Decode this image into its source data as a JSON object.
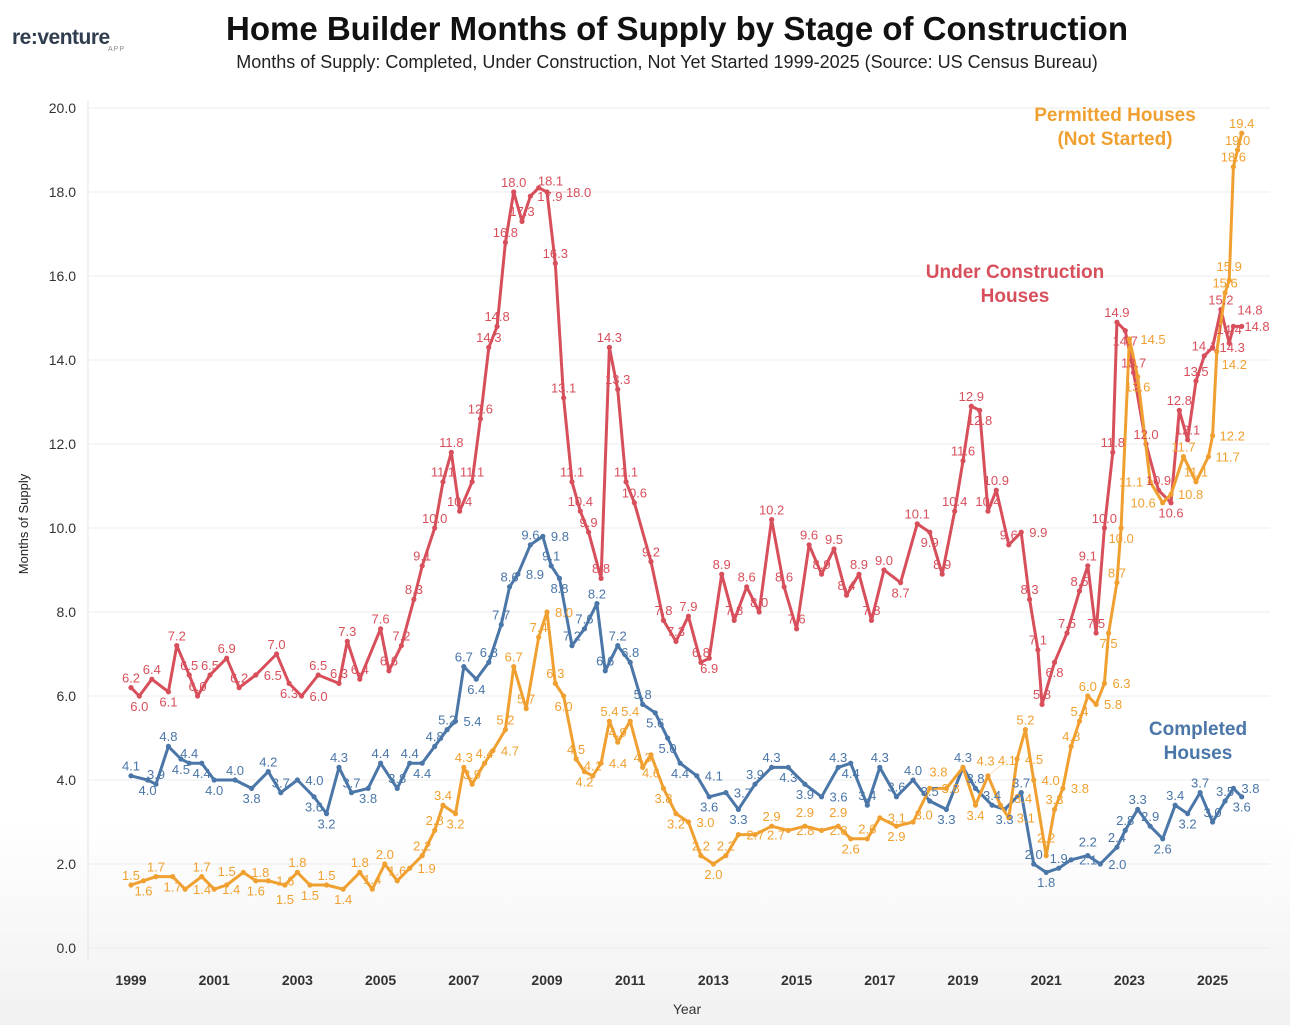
{
  "logo": {
    "text": "re:venture",
    "sub": "APP"
  },
  "chart_data": {
    "type": "line",
    "title": "Home Builder Months of Supply by Stage of Construction",
    "subtitle": "Months of Supply: Completed, Under Construction, Not Yet Started 1999-2025 (Source: US Census Bureau)",
    "xlabel": "Year",
    "ylabel": "Months of Supply",
    "xlim": [
      1998.6,
      2026.2
    ],
    "ylim": [
      0,
      20
    ],
    "yticks": [
      "0.0",
      "2.0",
      "4.0",
      "6.0",
      "8.0",
      "10.0",
      "12.0",
      "14.0",
      "16.0",
      "18.0",
      "20.0"
    ],
    "xticks": [
      "1999",
      "2001",
      "2003",
      "2005",
      "2007",
      "2009",
      "2011",
      "2013",
      "2015",
      "2017",
      "2019",
      "2021",
      "2023",
      "2025"
    ],
    "grid": true,
    "series": [
      {
        "name": "Under Construction Houses",
        "label_lines": [
          "Under Construction",
          "Houses"
        ],
        "color": "#d84f5c",
        "points": [
          [
            1999.0,
            6.2
          ],
          [
            1999.2,
            6.0
          ],
          [
            1999.5,
            6.4
          ],
          [
            1999.9,
            6.1
          ],
          [
            2000.1,
            7.2
          ],
          [
            2000.4,
            6.5
          ],
          [
            2000.6,
            6.0
          ],
          [
            2000.9,
            6.5
          ],
          [
            2001.3,
            6.9
          ],
          [
            2001.6,
            6.2
          ],
          [
            2002.0,
            6.5
          ],
          [
            2002.5,
            7.0
          ],
          [
            2002.8,
            6.3
          ],
          [
            2003.1,
            6.0
          ],
          [
            2003.5,
            6.5
          ],
          [
            2004.0,
            6.3
          ],
          [
            2004.2,
            7.3
          ],
          [
            2004.5,
            6.4
          ],
          [
            2005.0,
            7.6
          ],
          [
            2005.2,
            6.6
          ],
          [
            2005.5,
            7.2
          ],
          [
            2005.8,
            8.3
          ],
          [
            2006.0,
            9.1
          ],
          [
            2006.3,
            10.0
          ],
          [
            2006.5,
            11.1
          ],
          [
            2006.7,
            11.8
          ],
          [
            2006.9,
            10.4
          ],
          [
            2007.2,
            11.1
          ],
          [
            2007.4,
            12.6
          ],
          [
            2007.6,
            14.3
          ],
          [
            2007.8,
            14.8
          ],
          [
            2008.0,
            16.8
          ],
          [
            2008.2,
            18.0
          ],
          [
            2008.4,
            17.3
          ],
          [
            2008.6,
            17.9
          ],
          [
            2008.8,
            18.1
          ],
          [
            2009.0,
            18.0
          ],
          [
            2009.2,
            16.3
          ],
          [
            2009.4,
            13.1
          ],
          [
            2009.6,
            11.1
          ],
          [
            2009.8,
            10.4
          ],
          [
            2010.0,
            9.9
          ],
          [
            2010.3,
            8.8
          ],
          [
            2010.5,
            14.3
          ],
          [
            2010.7,
            13.3
          ],
          [
            2010.9,
            11.1
          ],
          [
            2011.1,
            10.6
          ],
          [
            2011.5,
            9.2
          ],
          [
            2011.8,
            7.8
          ],
          [
            2012.1,
            7.3
          ],
          [
            2012.4,
            7.9
          ],
          [
            2012.7,
            6.8
          ],
          [
            2012.9,
            6.9
          ],
          [
            2013.2,
            8.9
          ],
          [
            2013.5,
            7.8
          ],
          [
            2013.8,
            8.6
          ],
          [
            2014.1,
            8.0
          ],
          [
            2014.4,
            10.2
          ],
          [
            2014.7,
            8.6
          ],
          [
            2015.0,
            7.6
          ],
          [
            2015.3,
            9.6
          ],
          [
            2015.6,
            8.9
          ],
          [
            2015.9,
            9.5
          ],
          [
            2016.2,
            8.4
          ],
          [
            2016.5,
            8.9
          ],
          [
            2016.8,
            7.8
          ],
          [
            2017.1,
            9.0
          ],
          [
            2017.5,
            8.7
          ],
          [
            2017.9,
            10.1
          ],
          [
            2018.2,
            9.9
          ],
          [
            2018.5,
            8.9
          ],
          [
            2018.8,
            10.4
          ],
          [
            2019.0,
            11.6
          ],
          [
            2019.2,
            12.9
          ],
          [
            2019.4,
            12.8
          ],
          [
            2019.6,
            10.4
          ],
          [
            2019.8,
            10.9
          ],
          [
            2020.1,
            9.6
          ],
          [
            2020.4,
            9.9
          ],
          [
            2020.6,
            8.3
          ],
          [
            2020.8,
            7.1
          ],
          [
            2020.9,
            5.8
          ],
          [
            2021.2,
            6.8
          ],
          [
            2021.5,
            7.5
          ],
          [
            2021.8,
            8.5
          ],
          [
            2022.0,
            9.1
          ],
          [
            2022.2,
            7.5
          ],
          [
            2022.4,
            10.0
          ],
          [
            2022.6,
            11.8
          ],
          [
            2022.7,
            14.9
          ],
          [
            2022.9,
            14.7
          ],
          [
            2023.1,
            13.7
          ],
          [
            2023.4,
            12.0
          ],
          [
            2023.7,
            10.9
          ],
          [
            2024.0,
            10.6
          ],
          [
            2024.2,
            12.8
          ],
          [
            2024.4,
            12.1
          ],
          [
            2024.6,
            13.5
          ],
          [
            2024.8,
            14.1
          ],
          [
            2025.0,
            14.3
          ],
          [
            2025.2,
            15.2
          ],
          [
            2025.4,
            14.4
          ],
          [
            2025.5,
            14.8
          ],
          [
            2025.7,
            14.8
          ]
        ]
      },
      {
        "name": "Completed Houses",
        "label_lines": [
          "Completed",
          "Houses"
        ],
        "color": "#4a76a8",
        "points": [
          [
            1999.0,
            4.1
          ],
          [
            1999.4,
            4.0
          ],
          [
            1999.6,
            3.9
          ],
          [
            1999.9,
            4.8
          ],
          [
            2000.2,
            4.5
          ],
          [
            2000.4,
            4.4
          ],
          [
            2000.7,
            4.4
          ],
          [
            2001.0,
            4.0
          ],
          [
            2001.5,
            4.0
          ],
          [
            2001.9,
            3.8
          ],
          [
            2002.3,
            4.2
          ],
          [
            2002.6,
            3.7
          ],
          [
            2003.0,
            4.0
          ],
          [
            2003.4,
            3.6
          ],
          [
            2003.7,
            3.2
          ],
          [
            2004.0,
            4.3
          ],
          [
            2004.3,
            3.7
          ],
          [
            2004.7,
            3.8
          ],
          [
            2005.0,
            4.4
          ],
          [
            2005.4,
            3.8
          ],
          [
            2005.7,
            4.4
          ],
          [
            2006.0,
            4.4
          ],
          [
            2006.3,
            4.8
          ],
          [
            2006.6,
            5.2
          ],
          [
            2006.8,
            5.4
          ],
          [
            2007.0,
            6.7
          ],
          [
            2007.3,
            6.4
          ],
          [
            2007.6,
            6.8
          ],
          [
            2007.9,
            7.7
          ],
          [
            2008.1,
            8.6
          ],
          [
            2008.3,
            8.9
          ],
          [
            2008.6,
            9.6
          ],
          [
            2008.9,
            9.8
          ],
          [
            2009.1,
            9.1
          ],
          [
            2009.3,
            8.8
          ],
          [
            2009.6,
            7.2
          ],
          [
            2009.9,
            7.6
          ],
          [
            2010.2,
            8.2
          ],
          [
            2010.4,
            6.6
          ],
          [
            2010.7,
            7.2
          ],
          [
            2011.0,
            6.8
          ],
          [
            2011.3,
            5.8
          ],
          [
            2011.6,
            5.6
          ],
          [
            2011.9,
            5.0
          ],
          [
            2012.2,
            4.4
          ],
          [
            2012.6,
            4.1
          ],
          [
            2012.9,
            3.6
          ],
          [
            2013.3,
            3.7
          ],
          [
            2013.6,
            3.3
          ],
          [
            2014.0,
            3.9
          ],
          [
            2014.4,
            4.3
          ],
          [
            2014.8,
            4.3
          ],
          [
            2015.2,
            3.9
          ],
          [
            2015.6,
            3.6
          ],
          [
            2016.0,
            4.3
          ],
          [
            2016.3,
            4.4
          ],
          [
            2016.7,
            3.4
          ],
          [
            2017.0,
            4.3
          ],
          [
            2017.4,
            3.6
          ],
          [
            2017.8,
            4.0
          ],
          [
            2018.2,
            3.5
          ],
          [
            2018.6,
            3.3
          ],
          [
            2019.0,
            4.3
          ],
          [
            2019.3,
            3.8
          ],
          [
            2019.7,
            3.4
          ],
          [
            2020.0,
            3.3
          ],
          [
            2020.4,
            3.7
          ],
          [
            2020.7,
            2.0
          ],
          [
            2021.0,
            1.8
          ],
          [
            2021.3,
            1.9
          ],
          [
            2021.6,
            2.1
          ],
          [
            2022.0,
            2.2
          ],
          [
            2022.3,
            2.0
          ],
          [
            2022.7,
            2.4
          ],
          [
            2022.9,
            2.8
          ],
          [
            2023.2,
            3.3
          ],
          [
            2023.5,
            2.9
          ],
          [
            2023.8,
            2.6
          ],
          [
            2024.1,
            3.4
          ],
          [
            2024.4,
            3.2
          ],
          [
            2024.7,
            3.7
          ],
          [
            2025.0,
            3.0
          ],
          [
            2025.3,
            3.5
          ],
          [
            2025.5,
            3.8
          ],
          [
            2025.7,
            3.6
          ]
        ]
      },
      {
        "name": "Permitted Houses (Not Started)",
        "label_lines": [
          "Permitted Houses",
          "(Not Started)"
        ],
        "color": "#f0a030",
        "points": [
          [
            1999.0,
            1.5
          ],
          [
            1999.3,
            1.6
          ],
          [
            1999.6,
            1.7
          ],
          [
            2000.0,
            1.7
          ],
          [
            2000.3,
            1.4
          ],
          [
            2000.7,
            1.7
          ],
          [
            2001.0,
            1.4
          ],
          [
            2001.3,
            1.5
          ],
          [
            2001.7,
            1.8
          ],
          [
            2002.0,
            1.6
          ],
          [
            2002.3,
            1.6
          ],
          [
            2002.7,
            1.5
          ],
          [
            2003.0,
            1.8
          ],
          [
            2003.3,
            1.5
          ],
          [
            2003.7,
            1.5
          ],
          [
            2004.1,
            1.4
          ],
          [
            2004.5,
            1.8
          ],
          [
            2004.8,
            1.4
          ],
          [
            2005.1,
            2.0
          ],
          [
            2005.4,
            1.6
          ],
          [
            2005.7,
            1.9
          ],
          [
            2006.0,
            2.2
          ],
          [
            2006.3,
            2.8
          ],
          [
            2006.5,
            3.4
          ],
          [
            2006.8,
            3.2
          ],
          [
            2007.0,
            4.3
          ],
          [
            2007.2,
            3.9
          ],
          [
            2007.5,
            4.4
          ],
          [
            2007.7,
            4.7
          ],
          [
            2008.0,
            5.2
          ],
          [
            2008.2,
            6.7
          ],
          [
            2008.5,
            5.7
          ],
          [
            2008.8,
            7.4
          ],
          [
            2009.0,
            8.0
          ],
          [
            2009.2,
            6.3
          ],
          [
            2009.4,
            6.0
          ],
          [
            2009.7,
            4.5
          ],
          [
            2009.9,
            4.2
          ],
          [
            2010.1,
            4.1
          ],
          [
            2010.3,
            4.4
          ],
          [
            2010.5,
            5.4
          ],
          [
            2010.7,
            4.9
          ],
          [
            2011.0,
            5.4
          ],
          [
            2011.3,
            4.3
          ],
          [
            2011.5,
            4.6
          ],
          [
            2011.8,
            3.8
          ],
          [
            2012.1,
            3.2
          ],
          [
            2012.4,
            3.0
          ],
          [
            2012.7,
            2.2
          ],
          [
            2013.0,
            2.0
          ],
          [
            2013.3,
            2.2
          ],
          [
            2013.6,
            2.7
          ],
          [
            2014.0,
            2.7
          ],
          [
            2014.4,
            2.9
          ],
          [
            2014.8,
            2.8
          ],
          [
            2015.2,
            2.9
          ],
          [
            2015.6,
            2.8
          ],
          [
            2016.0,
            2.9
          ],
          [
            2016.3,
            2.6
          ],
          [
            2016.7,
            2.6
          ],
          [
            2017.0,
            3.1
          ],
          [
            2017.4,
            2.9
          ],
          [
            2017.8,
            3.0
          ],
          [
            2018.2,
            3.8
          ],
          [
            2018.6,
            3.8
          ],
          [
            2019.0,
            4.3
          ],
          [
            2019.3,
            3.4
          ],
          [
            2019.6,
            4.1
          ],
          [
            2019.9,
            3.4
          ],
          [
            2020.1,
            3.1
          ],
          [
            2020.3,
            4.5
          ],
          [
            2020.5,
            5.2
          ],
          [
            2020.7,
            4.0
          ],
          [
            2021.0,
            2.2
          ],
          [
            2021.2,
            3.3
          ],
          [
            2021.4,
            3.8
          ],
          [
            2021.6,
            4.8
          ],
          [
            2021.8,
            5.4
          ],
          [
            2022.0,
            6.0
          ],
          [
            2022.2,
            5.8
          ],
          [
            2022.4,
            6.3
          ],
          [
            2022.5,
            7.5
          ],
          [
            2022.7,
            8.7
          ],
          [
            2022.8,
            10.0
          ],
          [
            2023.0,
            14.5
          ],
          [
            2023.2,
            13.6
          ],
          [
            2023.5,
            11.1
          ],
          [
            2023.8,
            10.6
          ],
          [
            2024.0,
            10.8
          ],
          [
            2024.3,
            11.7
          ],
          [
            2024.6,
            11.1
          ],
          [
            2024.9,
            11.7
          ],
          [
            2025.0,
            12.2
          ],
          [
            2025.1,
            14.2
          ],
          [
            2025.3,
            15.6
          ],
          [
            2025.4,
            15.9
          ],
          [
            2025.5,
            18.6
          ],
          [
            2025.6,
            19.0
          ],
          [
            2025.7,
            19.4
          ]
        ]
      }
    ]
  }
}
